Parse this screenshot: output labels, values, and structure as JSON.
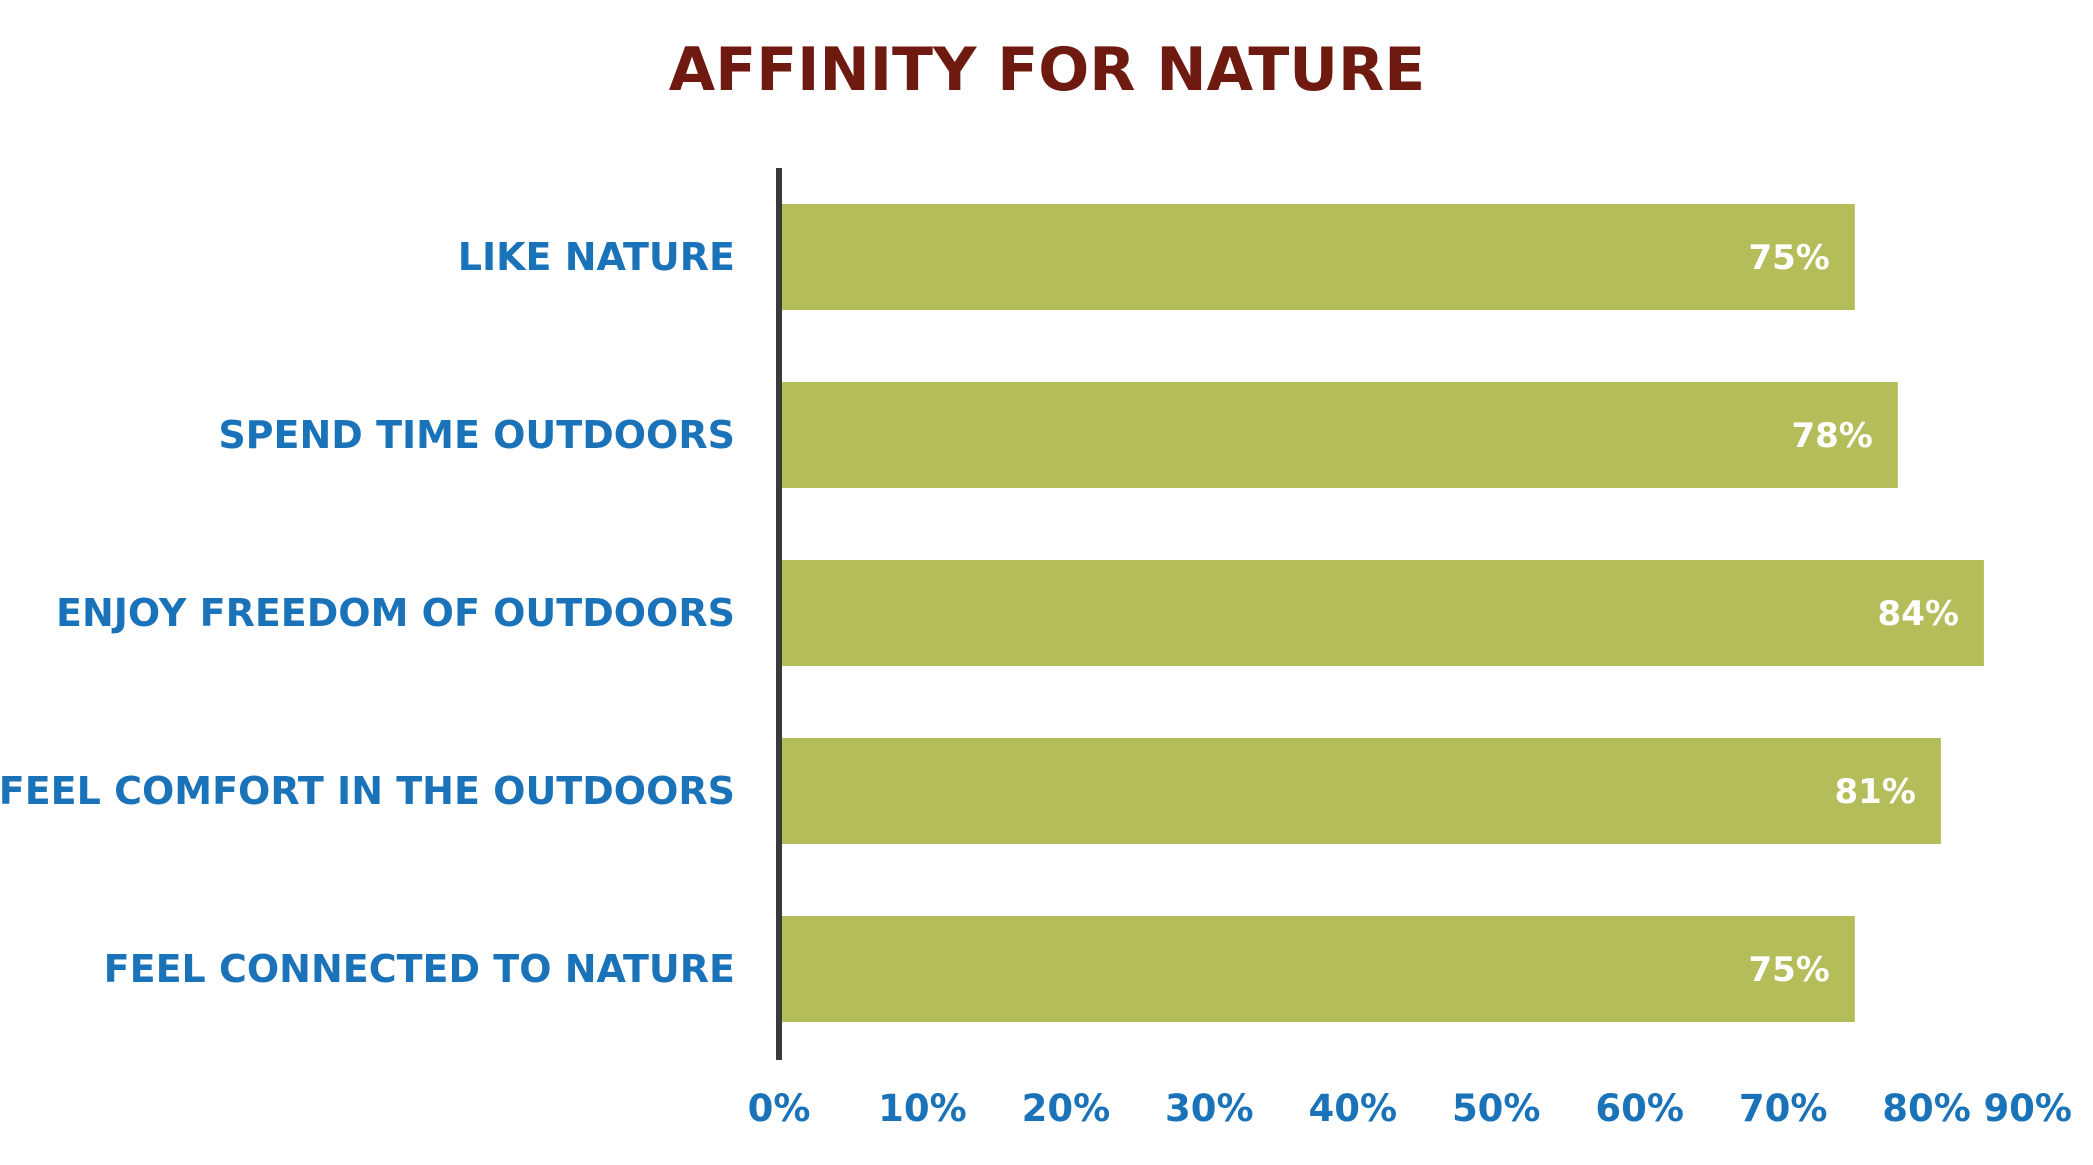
{
  "chart_data": {
    "type": "bar",
    "orientation": "horizontal",
    "title": "AFFINITY FOR NATURE",
    "categories": [
      "LIKE NATURE",
      "SPEND TIME OUTDOORS",
      "ENJOY FREEDOM OF OUTDOORS",
      "FEEL COMFORT IN THE OUTDOORS",
      "FEEL CONNECTED TO NATURE"
    ],
    "values": [
      75,
      78,
      84,
      81,
      75
    ],
    "data_labels": [
      "75%",
      "78%",
      "84%",
      "81%",
      "75%"
    ],
    "xlim": [
      0,
      90
    ],
    "x_ticks": [
      0,
      10,
      20,
      30,
      40,
      50,
      60,
      70,
      80,
      90
    ],
    "x_tick_labels": [
      "0%",
      "10%",
      "20%",
      "30%",
      "40%",
      "50%",
      "60%",
      "70%",
      "80%",
      "90%"
    ],
    "xlabel": "",
    "ylabel": "",
    "grid": false,
    "legend": "none",
    "colors": {
      "bar": "#b5bd5a",
      "title": "#6e1a10",
      "labels": "#1a72b8",
      "data_label": "#ffffff",
      "axis": "#3a3a3a"
    }
  }
}
